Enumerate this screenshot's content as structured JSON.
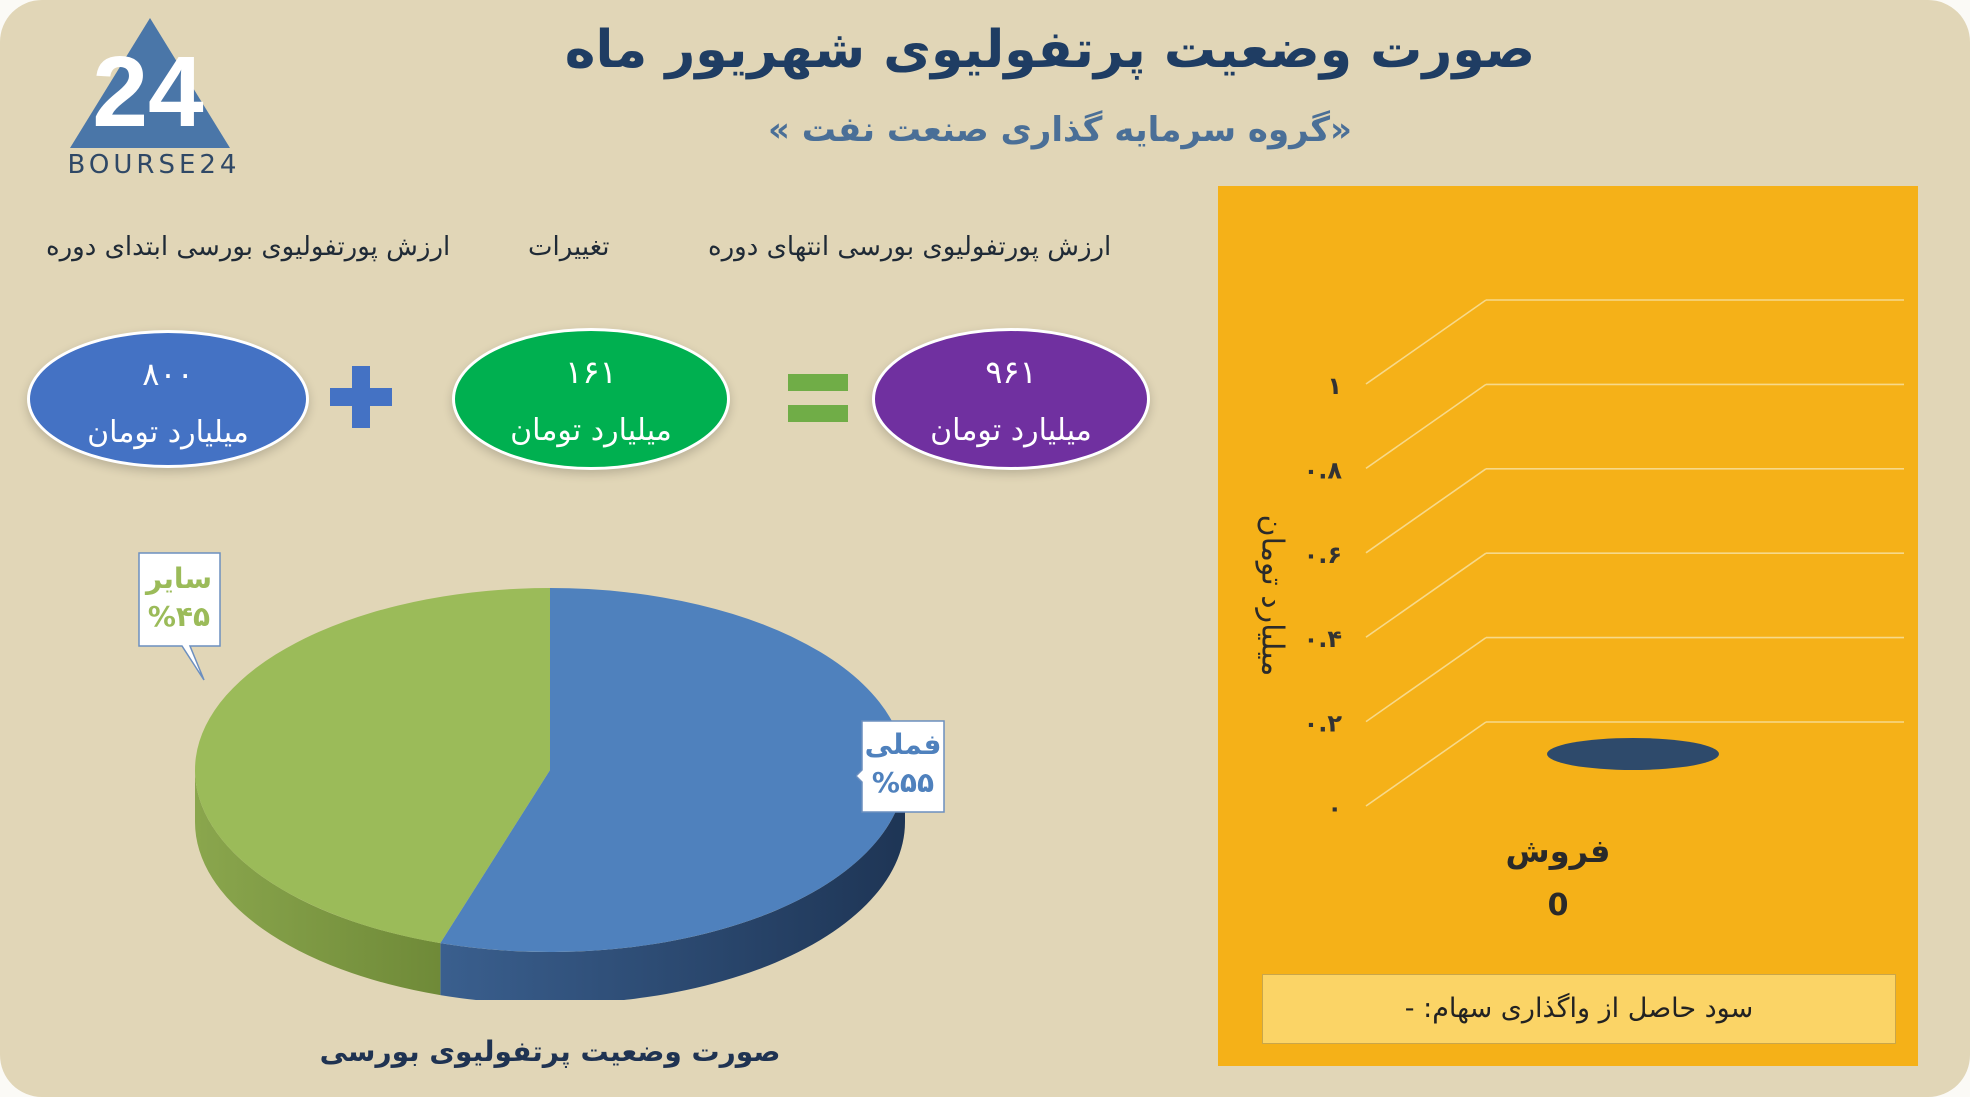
{
  "header": {
    "title": "صورت وضعیت پرتفولیوی شهریور ماه",
    "subtitle": "«گروه سرمایه گذاری صنعت نفت »",
    "logo_text": "BOURSE24"
  },
  "summary": {
    "labels": {
      "end": "ارزش پورتفولیوی بورسی انتهای دوره",
      "change": "تغییرات",
      "start": "ارزش پورتفولیوی بورسی ابتدای دوره"
    },
    "end_value": "۹۶۱",
    "change_value": "۱۶۱",
    "start_value": "۸۰۰",
    "unit": "میلیارد تومان",
    "colors": {
      "end": "#7030a0",
      "change": "#00b050",
      "start": "#4472c4",
      "plus": "#4472c4",
      "equals": "#70ad47"
    }
  },
  "chart_data": [
    {
      "type": "pie",
      "title": "صورت وضعیت پرتفولیوی بورسی",
      "categories": [
        "فملی",
        "سایر"
      ],
      "values": [
        55,
        45
      ],
      "labels": [
        "%۵۵",
        "%۴۵"
      ],
      "colors": [
        "#4f81bd",
        "#9bbb59"
      ]
    },
    {
      "type": "bar",
      "categories": [
        "فروش"
      ],
      "values": [
        0
      ],
      "value_labels": [
        "0"
      ],
      "ylabel": "میلیارد تومان",
      "ylim": [
        0,
        1
      ],
      "yticks": [
        "۰",
        "۰.۲",
        "۰.۴",
        "۰.۶",
        "۰.۸",
        "۱"
      ],
      "grid": true,
      "background": "#f5b118",
      "bar_color": "#2e4a6b"
    }
  ],
  "note": {
    "text": "سود حاصل از واگذاری سهام: -"
  }
}
